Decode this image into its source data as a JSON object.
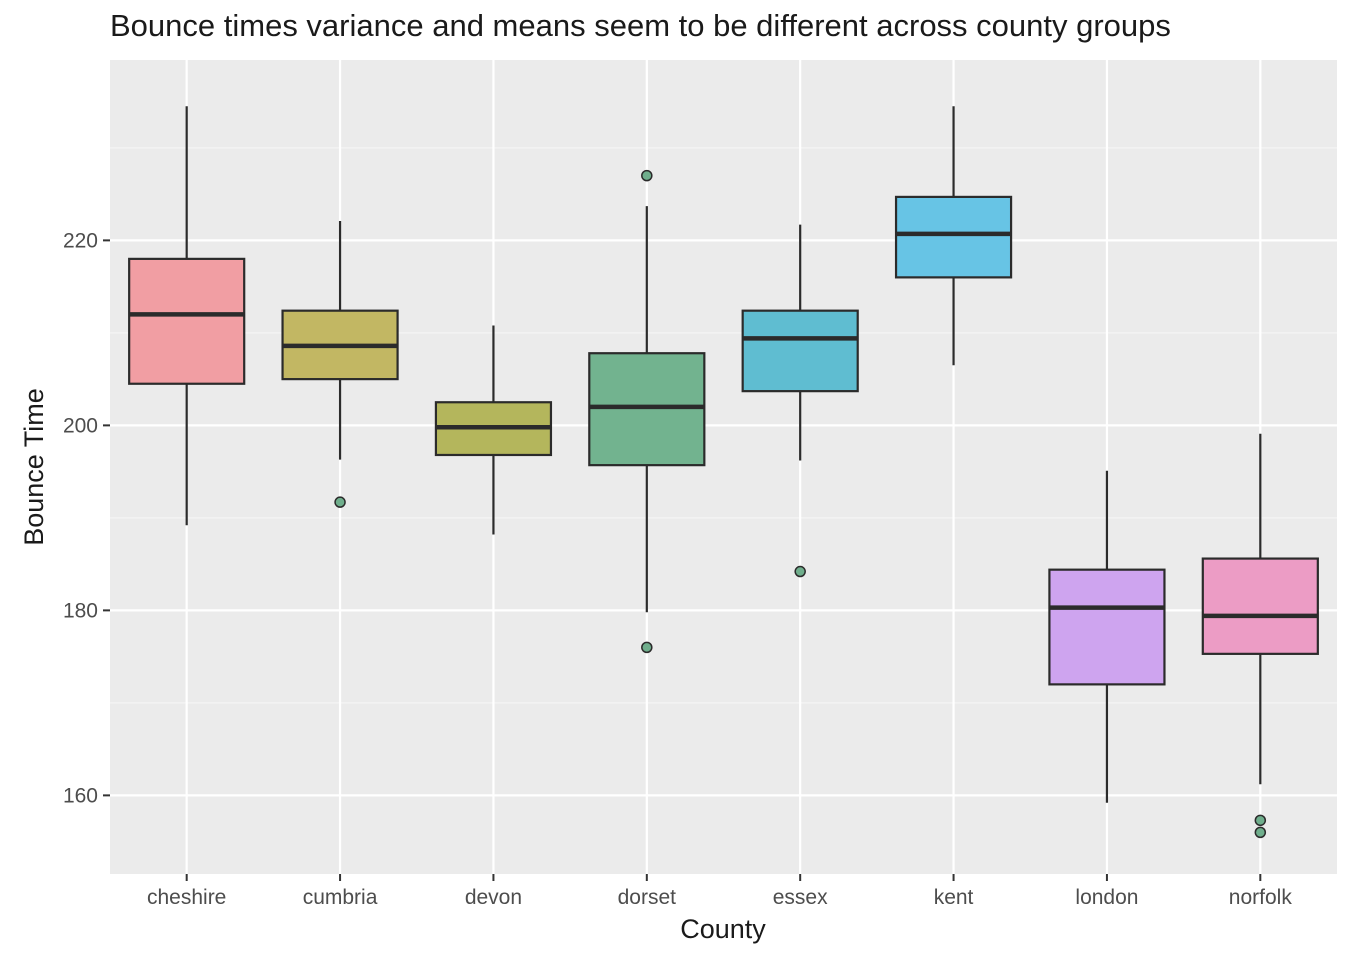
{
  "chart_data": {
    "type": "box",
    "title": "Bounce times variance and means seem to be different across county groups",
    "xlabel": "County",
    "ylabel": "Bounce Time",
    "ylim": [
      151.5,
      239.5
    ],
    "yticks": [
      160,
      180,
      200,
      220
    ],
    "grid": true,
    "legend": "none",
    "categories": [
      "cheshire",
      "cumbria",
      "devon",
      "dorset",
      "essex",
      "kent",
      "london",
      "norfolk"
    ],
    "boxes": [
      {
        "category": "cheshire",
        "whisker_low": 189.2,
        "q1": 204.5,
        "median": 212.0,
        "q3": 218.0,
        "whisker_high": 234.5,
        "outliers": [],
        "color": "#f19ea3"
      },
      {
        "category": "cumbria",
        "whisker_low": 196.3,
        "q1": 205.0,
        "median": 208.6,
        "q3": 212.4,
        "whisker_high": 222.1,
        "outliers": [
          191.7
        ],
        "color": "#c2b763"
      },
      {
        "category": "devon",
        "whisker_low": 188.2,
        "q1": 196.8,
        "median": 199.8,
        "q3": 202.5,
        "whisker_high": 210.8,
        "outliers": [],
        "color": "#b4b65c"
      },
      {
        "category": "dorset",
        "whisker_low": 179.8,
        "q1": 195.7,
        "median": 202.0,
        "q3": 207.8,
        "whisker_high": 223.7,
        "outliers": [
          227.0,
          176.0
        ],
        "color": "#72b38f"
      },
      {
        "category": "essex",
        "whisker_low": 196.2,
        "q1": 203.7,
        "median": 209.4,
        "q3": 212.4,
        "whisker_high": 221.7,
        "outliers": [
          184.2
        ],
        "color": "#5fbdd1"
      },
      {
        "category": "kent",
        "whisker_low": 206.5,
        "q1": 216.0,
        "median": 220.7,
        "q3": 224.7,
        "whisker_high": 234.5,
        "outliers": [],
        "color": "#67c4e5"
      },
      {
        "category": "london",
        "whisker_low": 159.2,
        "q1": 172.0,
        "median": 180.3,
        "q3": 184.4,
        "whisker_high": 195.1,
        "outliers": [],
        "color": "#cea4ef"
      },
      {
        "category": "norfolk",
        "whisker_low": 161.2,
        "q1": 175.3,
        "median": 179.4,
        "q3": 185.6,
        "whisker_high": 199.1,
        "outliers": [
          157.3,
          156.0
        ],
        "color": "#ec9cc5"
      }
    ],
    "colors": {
      "panel_background": "#ebebeb",
      "grid_major": "#ffffff",
      "grid_minor": "#f5f5f5",
      "box_outline": "#2b2b2b",
      "outlier_fill": "#6fae8c"
    }
  }
}
